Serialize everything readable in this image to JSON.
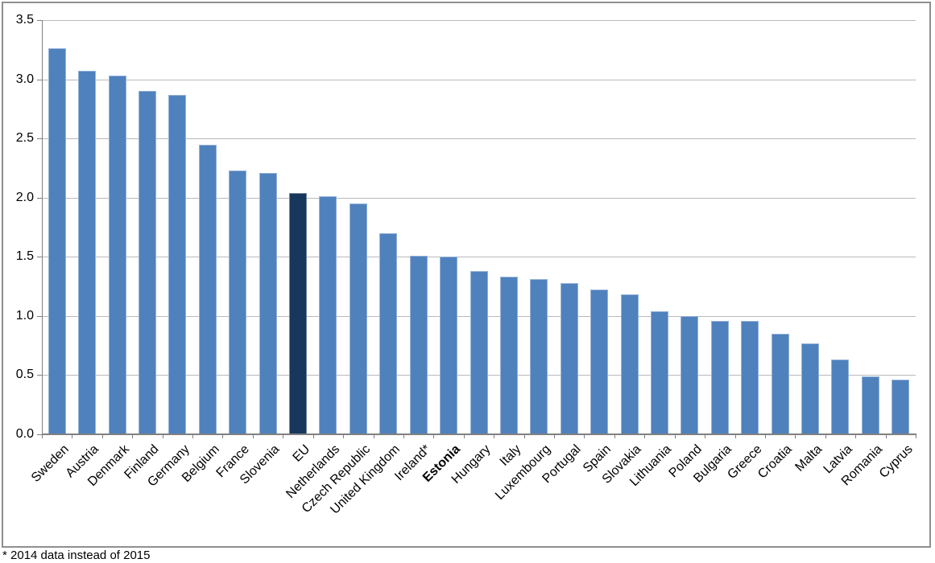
{
  "chart_data": {
    "type": "bar",
    "title": "",
    "xlabel": "",
    "ylabel": "",
    "ylim": [
      0,
      3.5
    ],
    "ytick_step": 0.5,
    "ytick_labels": [
      "0.0",
      "0.5",
      "1.0",
      "1.5",
      "2.0",
      "2.5",
      "3.0",
      "3.5"
    ],
    "grid": true,
    "legend_position": "none",
    "categories": [
      "Sweden",
      "Austria",
      "Denmark",
      "Finland",
      "Germany",
      "Belgium",
      "France",
      "Slovenia",
      "EU",
      "Netherlands",
      "Czech Republic",
      "United Kingdom",
      "Ireland*",
      "Estonia",
      "Hungary",
      "Italy",
      "Luxembourg",
      "Portugal",
      "Spain",
      "Slovakia",
      "Lithuania",
      "Poland",
      "Bulgaria",
      "Greece",
      "Croatia",
      "Malta",
      "Latvia",
      "Romania",
      "Cyprus"
    ],
    "values": [
      3.26,
      3.07,
      3.03,
      2.9,
      2.87,
      2.45,
      2.23,
      2.21,
      2.04,
      2.01,
      1.95,
      1.7,
      1.51,
      1.5,
      1.38,
      1.33,
      1.31,
      1.28,
      1.22,
      1.18,
      1.04,
      1.0,
      0.96,
      0.96,
      0.85,
      0.77,
      0.63,
      0.49,
      0.46
    ],
    "highlight_category": "EU",
    "bold_label_category": "Estonia",
    "colors": {
      "bar": "#4f81bd",
      "highlight_bar": "#17375d",
      "gridline": "#b9b9b9",
      "axis": "#808080",
      "text": "#000000",
      "border": "#8f8f8f"
    },
    "footnote": "* 2014 data instead of 2015"
  }
}
